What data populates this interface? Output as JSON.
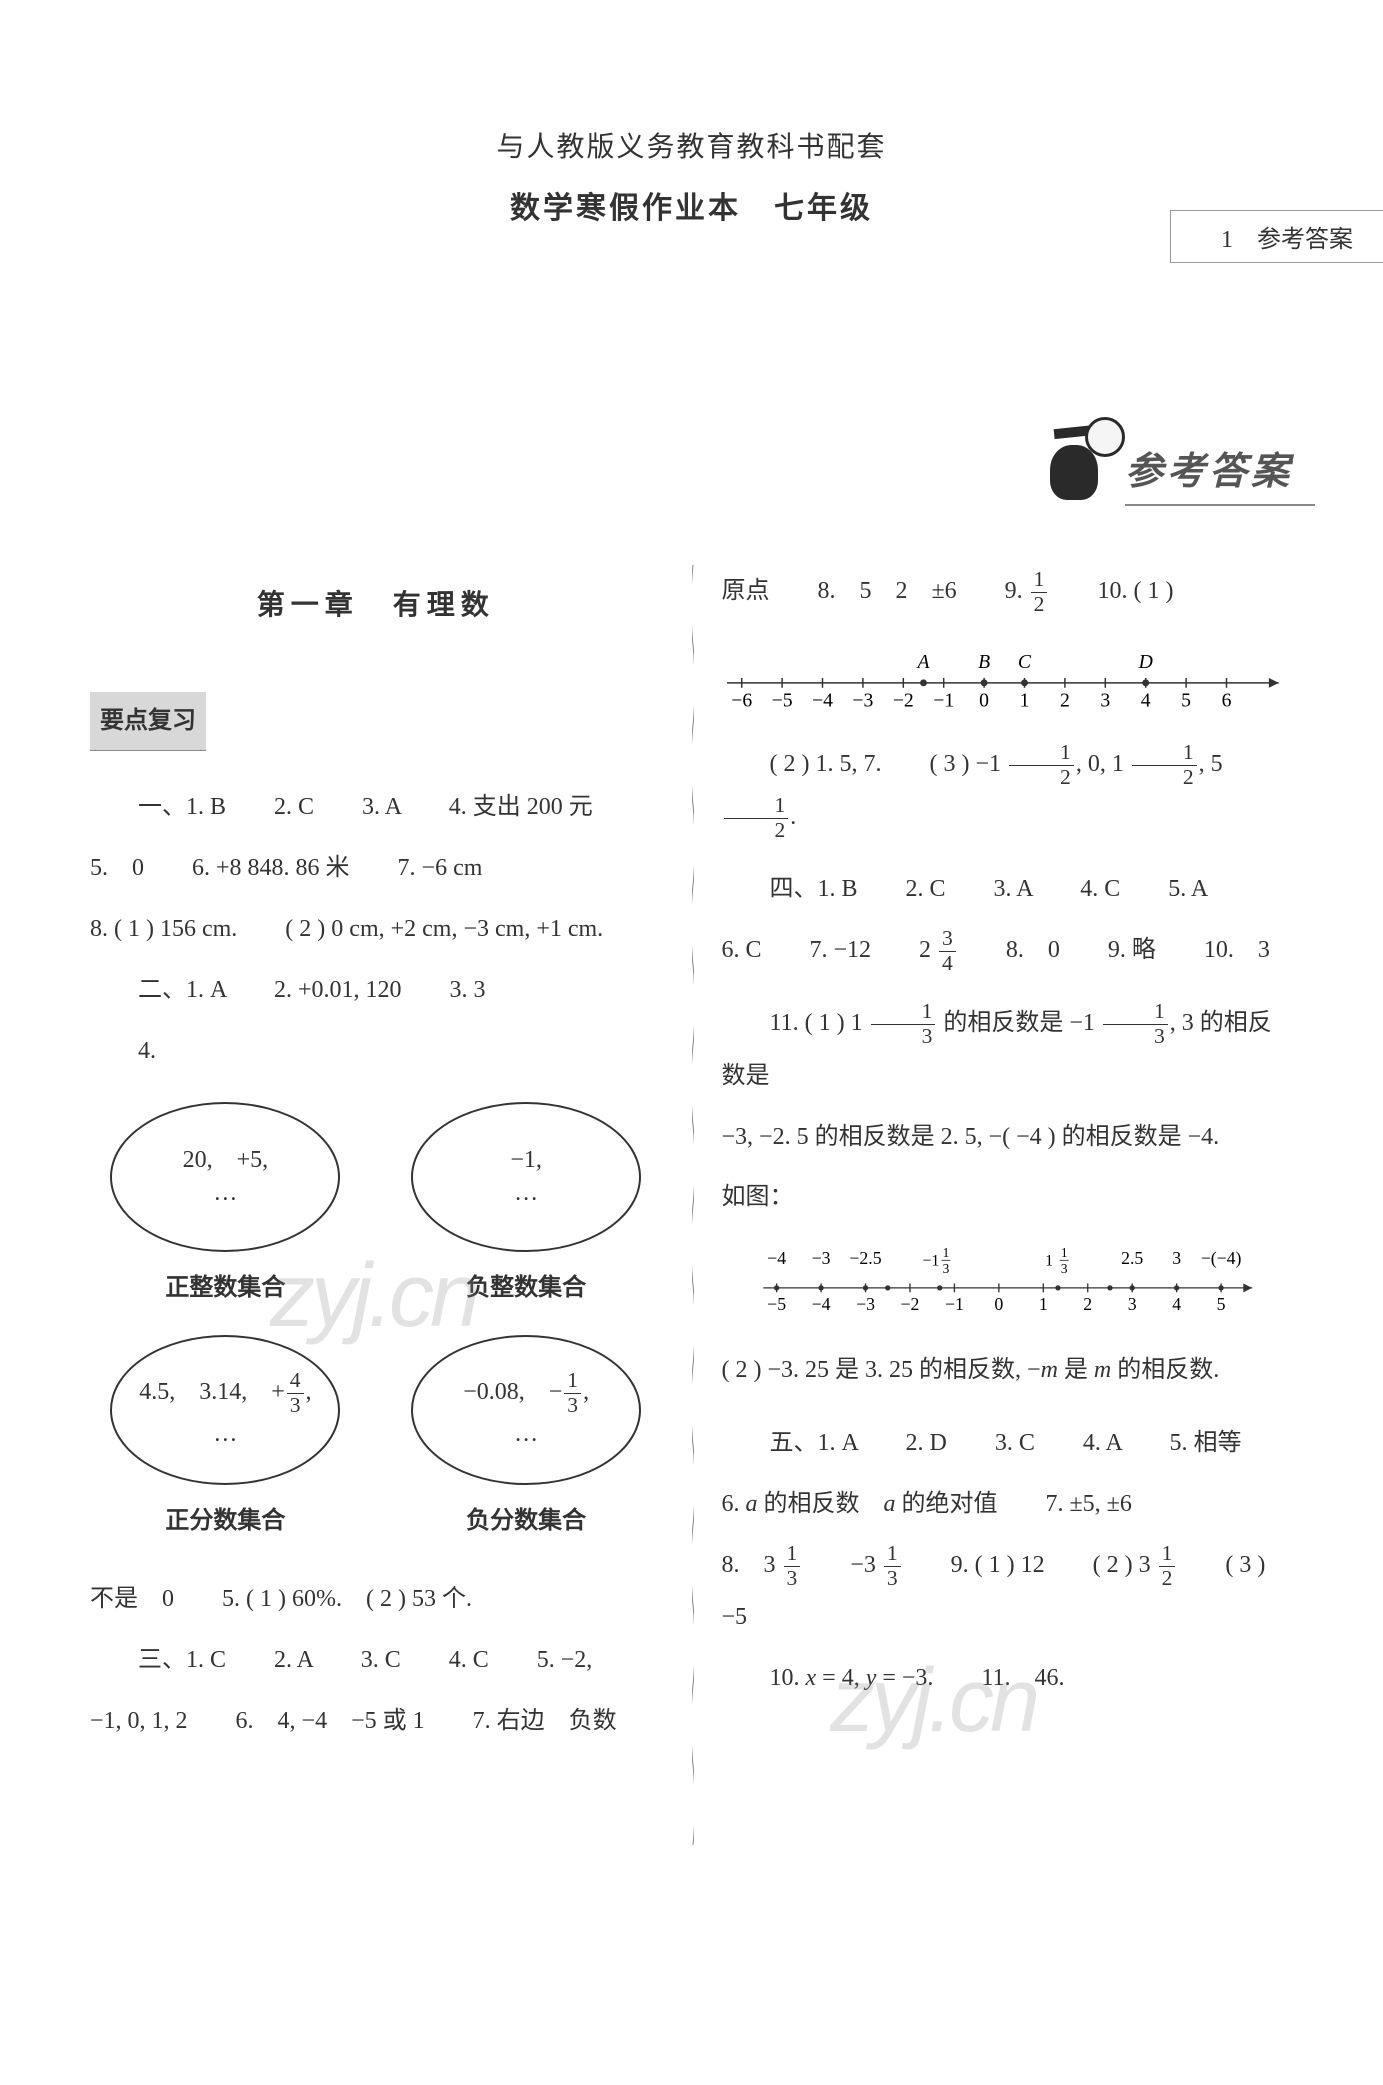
{
  "header": {
    "tab": "1　参考答案",
    "line1": "与人教版义务教育教科书配套",
    "line2": "数学寒假作业本　七年级",
    "banner": "参考答案"
  },
  "left": {
    "chapter": "第一章　有理数",
    "section": "要点复习",
    "r1": "一、1. B　　2. C　　3. A　　4. 支出 200 元",
    "r2": "5.　0　　6. +8 848. 86 米　　7. −6 cm",
    "r3": "8. ( 1 ) 156 cm.　　( 2 ) 0 cm, +2 cm, −3 cm, +1 cm.",
    "r4_a": "二、1. A　　2. +0.01, 120　　3. 3",
    "r4_b": "4.",
    "sets": {
      "s1_l1": "20,　+5,",
      "s1_l2": "…",
      "s1_cap": "正整数集合",
      "s2_l1": "−1,",
      "s2_l2": "…",
      "s2_cap": "负整数集合",
      "s3_pre": "4.5,　3.14,　+",
      "s3_fn": "4",
      "s3_fd": "3",
      "s3_post": ",",
      "s3_l2": "…",
      "s3_cap": "正分数集合",
      "s4_pre": "−0.08,　−",
      "s4_fn": "1",
      "s4_fd": "3",
      "s4_post": ",",
      "s4_l2": "…",
      "s4_cap": "负分数集合"
    },
    "r5": "不是　0　　5. ( 1 ) 60%.　( 2 ) 53 个.",
    "r6": "三、1. C　　2. A　　3. C　　4. C　　5. −2,",
    "r7": "−1, 0, 1, 2　　6.　4, −4　−5 或 1　　7. 右边　负数"
  },
  "right": {
    "r1_a": "原点　　8.　5　2　±6　　9. ",
    "r1_fn": "1",
    "r1_fd": "2",
    "r1_b": "　　10. ( 1 )",
    "numline1": {
      "ticks": [
        "−6",
        "−5",
        "−4",
        "−3",
        "−2",
        "−1",
        "0",
        "1",
        "2",
        "3",
        "4",
        "5",
        "6"
      ],
      "labels": [
        {
          "t": "A",
          "x": 4.5
        },
        {
          "t": "B",
          "x": 6
        },
        {
          "t": "C",
          "x": 7
        },
        {
          "t": "D",
          "x": 10
        }
      ]
    },
    "r2_a": "( 2 ) 1. 5, 7.　　( 3 ) −1 ",
    "r2_f1n": "1",
    "r2_f1d": "2",
    "r2_b": ", 0, 1 ",
    "r2_f2n": "1",
    "r2_f2d": "2",
    "r2_c": ", 5 ",
    "r2_f3n": "1",
    "r2_f3d": "2",
    "r2_d": ".",
    "r3": "四、1. B　　2. C　　3. A　　4. C　　5. A",
    "r4_a": "6. C　　7. −12　　2 ",
    "r4_fn": "3",
    "r4_fd": "4",
    "r4_b": "　　8.　0　　9. 略　　10.　3",
    "r5_a": "11. ( 1 ) 1 ",
    "r5_f1n": "1",
    "r5_f1d": "3",
    "r5_b": " 的相反数是 −1 ",
    "r5_f2n": "1",
    "r5_f2d": "3",
    "r5_c": ", 3 的相反数是",
    "r6": "−3, −2. 5 的相反数是 2. 5, −( −4 ) 的相反数是 −4.",
    "r7": "如图：",
    "numline2": {
      "ticks": [
        "−5",
        "−4",
        "−3",
        "−2",
        "−1",
        "0",
        "1",
        "2",
        "3",
        "4",
        "5"
      ],
      "top": [
        "−4",
        "−3",
        "−2.5",
        "",
        "",
        "",
        "",
        "",
        "2.5",
        "3",
        "−(−4)"
      ],
      "mixed": [
        {
          "pre": "−1",
          "n": "1",
          "d": "3",
          "x": 3.67
        },
        {
          "pre": "1",
          "n": "1",
          "d": "3",
          "x": 6.33
        }
      ]
    },
    "r8_a": "( 2 ) −3. 25 是 3. 25 的相反数, −",
    "r8_m": "m",
    "r8_b": " 是 ",
    "r8_m2": "m",
    "r8_c": " 的相反数.",
    "r9": "五、1. A　　2. D　　3. C　　4. A　　5. 相等",
    "r10_a": "6. ",
    "r10_m1": "a",
    "r10_b": " 的相反数　",
    "r10_m2": "a",
    "r10_c": " 的绝对值　　7. ±5, ±6",
    "r11_a": "8.　3 ",
    "r11_f1n": "1",
    "r11_f1d": "3",
    "r11_b": "　　−3 ",
    "r11_f2n": "1",
    "r11_f2d": "3",
    "r11_c": "　　9. ( 1 ) 12　　( 2 ) 3 ",
    "r11_f3n": "1",
    "r11_f3d": "2",
    "r11_d": "　　( 3 ) −5",
    "r12_a": "10. ",
    "r12_m1": "x",
    "r12_b": " = 4, ",
    "r12_m2": "y",
    "r12_c": " = −3.　　11.　46."
  },
  "watermark": "zyj.cn"
}
